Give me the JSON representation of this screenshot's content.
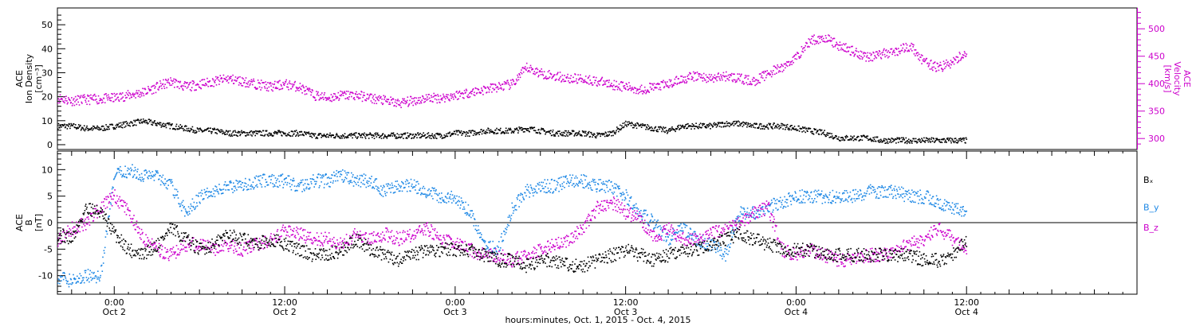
{
  "x_axis_title": "hours:minutes, Oct.  1, 2015 - Oct.  4, 2015",
  "x_ticks": [
    {
      "time": "0:00",
      "day": "Oct 2",
      "hours": 24
    },
    {
      "time": "12:00",
      "day": "Oct 2",
      "hours": 36
    },
    {
      "time": "0:00",
      "day": "Oct 3",
      "hours": 48
    },
    {
      "time": "12:00",
      "day": "Oct 3",
      "hours": 60
    },
    {
      "time": "0:00",
      "day": "Oct 4",
      "hours": 72
    },
    {
      "time": "12:00",
      "day": "Oct 4",
      "hours": 84
    }
  ],
  "colors": {
    "density": "#000000",
    "velocity": "#cc00cc",
    "bx": "#000000",
    "by": "#1e88e5",
    "bz": "#cc00cc"
  },
  "chart_data": [
    {
      "type": "scatter",
      "panel": "top",
      "ylabel_left": [
        "ACE",
        "Ion Density",
        "[cm⁻³]"
      ],
      "ylabel_right": [
        "ACE",
        "Velocity",
        "[km/s]"
      ],
      "x_range_hours": [
        20,
        96
      ],
      "ylim_left": [
        -2,
        57
      ],
      "left_ticks": [
        "0",
        "10",
        "20",
        "30",
        "40",
        "50"
      ],
      "ylim_right": [
        280,
        538
      ],
      "right_ticks": [
        "300",
        "350",
        "400",
        "450",
        "500"
      ],
      "series": [
        {
          "axis": "left",
          "x": [
            20,
            21,
            22,
            23,
            24,
            25,
            26,
            27,
            28,
            29,
            30,
            31,
            32,
            33,
            34,
            35,
            36,
            37,
            38,
            39,
            40,
            41,
            42,
            43,
            44,
            45,
            46,
            47,
            48,
            49,
            50,
            51,
            52,
            53,
            54,
            55,
            56,
            57,
            58,
            59,
            60,
            61,
            62,
            63,
            64,
            65,
            66,
            67,
            68,
            69,
            70,
            71,
            72,
            73,
            74,
            75,
            76,
            77,
            78,
            79,
            80,
            81,
            82,
            83,
            84
          ],
          "values": [
            8,
            8,
            7,
            7,
            8,
            9,
            10,
            9,
            8,
            7,
            6,
            6,
            5,
            5,
            5,
            5,
            5,
            5,
            4,
            4,
            4,
            4,
            4,
            4,
            4,
            4,
            4,
            4,
            5,
            5,
            6,
            6,
            6,
            7,
            6,
            5,
            5,
            5,
            4,
            5,
            9,
            8,
            7,
            6,
            8,
            8,
            8,
            9,
            9,
            8,
            8,
            8,
            7,
            6,
            5,
            3,
            3,
            3,
            2,
            2,
            2,
            2,
            2,
            2,
            2
          ]
        },
        {
          "axis": "right",
          "x": [
            20,
            21,
            22,
            23,
            24,
            25,
            26,
            27,
            28,
            29,
            30,
            31,
            32,
            33,
            34,
            35,
            36,
            37,
            38,
            39,
            40,
            41,
            42,
            43,
            44,
            45,
            46,
            47,
            48,
            49,
            50,
            51,
            52,
            53,
            54,
            55,
            56,
            57,
            58,
            59,
            60,
            61,
            62,
            63,
            64,
            65,
            66,
            67,
            68,
            69,
            70,
            71,
            72,
            73,
            74,
            75,
            76,
            77,
            78,
            79,
            80,
            81,
            82,
            83,
            84
          ],
          "values": [
            375,
            370,
            372,
            373,
            375,
            380,
            385,
            395,
            405,
            395,
            400,
            405,
            410,
            405,
            400,
            395,
            400,
            395,
            380,
            375,
            380,
            380,
            375,
            370,
            365,
            370,
            375,
            375,
            380,
            385,
            390,
            395,
            400,
            430,
            420,
            415,
            410,
            410,
            405,
            400,
            395,
            390,
            395,
            400,
            410,
            415,
            410,
            415,
            410,
            405,
            420,
            430,
            450,
            480,
            485,
            470,
            460,
            450,
            455,
            460,
            470,
            440,
            430,
            440,
            460
          ]
        }
      ]
    },
    {
      "type": "scatter",
      "panel": "bottom",
      "ylabel_left": [
        "ACE",
        "B",
        "[nT]"
      ],
      "x_range_hours": [
        20,
        96
      ],
      "ylim": [
        -13.5,
        13.5
      ],
      "ticks": [
        "-10",
        "-5",
        "0",
        "5",
        "10"
      ],
      "series": [
        {
          "name": "Bₓ",
          "x": [
            20,
            21,
            22,
            23,
            24,
            25,
            26,
            27,
            28,
            29,
            30,
            31,
            32,
            33,
            34,
            35,
            36,
            37,
            38,
            39,
            40,
            41,
            42,
            43,
            44,
            45,
            46,
            47,
            48,
            49,
            50,
            51,
            52,
            53,
            54,
            55,
            56,
            57,
            58,
            59,
            60,
            61,
            62,
            63,
            64,
            65,
            66,
            67,
            68,
            69,
            70,
            71,
            72,
            73,
            74,
            75,
            76,
            77,
            78,
            79,
            80,
            81,
            82,
            83,
            84
          ],
          "values": [
            -2,
            -3,
            3,
            2,
            -2,
            -5,
            -6,
            -4,
            -1,
            -3,
            -5,
            -4,
            -2,
            -3,
            -4,
            -3,
            -4,
            -5,
            -6,
            -6,
            -5,
            -3,
            -5,
            -6,
            -7,
            -6,
            -5,
            -5,
            -5,
            -5,
            -6,
            -7,
            -7,
            -8,
            -7,
            -7,
            -8,
            -8,
            -7,
            -6,
            -5,
            -6,
            -7,
            -6,
            -5,
            -5,
            -4,
            -3,
            -2,
            -3,
            -4,
            -5,
            -5,
            -5,
            -6,
            -6,
            -6,
            -6,
            -6,
            -6,
            -6,
            -7,
            -7,
            -6,
            -3
          ]
        },
        {
          "name": "B_y",
          "x": [
            20,
            21,
            22,
            23,
            24,
            25,
            26,
            27,
            28,
            29,
            30,
            31,
            32,
            33,
            34,
            35,
            36,
            37,
            38,
            39,
            40,
            41,
            42,
            43,
            44,
            45,
            46,
            47,
            48,
            49,
            50,
            51,
            52,
            53,
            54,
            55,
            56,
            57,
            58,
            59,
            60,
            61,
            62,
            63,
            64,
            65,
            66,
            67,
            68,
            69,
            70,
            71,
            72,
            73,
            74,
            75,
            76,
            77,
            78,
            79,
            80,
            81,
            82,
            83,
            84
          ],
          "values": [
            -10,
            -11,
            -10,
            -10,
            9,
            10,
            9,
            9,
            7,
            2,
            5,
            6,
            7,
            7,
            8,
            8,
            8,
            7,
            8,
            8,
            9,
            8,
            8,
            6,
            7,
            7,
            6,
            5,
            5,
            2,
            -4,
            -5,
            3,
            6,
            7,
            7,
            8,
            8,
            7,
            7,
            5,
            2,
            0,
            -3,
            -1,
            -3,
            -4,
            -6,
            2,
            2,
            3,
            4,
            5,
            5,
            5,
            5,
            5,
            6,
            6,
            6,
            5,
            5,
            4,
            3,
            2
          ]
        },
        {
          "name": "B_z",
          "x": [
            20,
            21,
            22,
            23,
            24,
            25,
            26,
            27,
            28,
            29,
            30,
            31,
            32,
            33,
            34,
            35,
            36,
            37,
            38,
            39,
            40,
            41,
            42,
            43,
            44,
            45,
            46,
            47,
            48,
            49,
            50,
            51,
            52,
            53,
            54,
            55,
            56,
            57,
            58,
            59,
            60,
            61,
            62,
            63,
            64,
            65,
            66,
            67,
            68,
            69,
            70,
            71,
            72,
            73,
            74,
            75,
            76,
            77,
            78,
            79,
            80,
            81,
            82,
            83,
            84
          ],
          "values": [
            -3,
            -1,
            0,
            3,
            5,
            2,
            -3,
            -5,
            -6,
            -4,
            -4,
            -5,
            -4,
            -5,
            -4,
            -3,
            -1,
            -2,
            -3,
            -3,
            -4,
            -2,
            -3,
            -2,
            -3,
            -2,
            -1,
            -3,
            -4,
            -5,
            -6,
            -6,
            -7,
            -6,
            -5,
            -4,
            -3,
            -1,
            3,
            4,
            2,
            1,
            -3,
            -1,
            -3,
            -3,
            -2,
            -1,
            0,
            2,
            3,
            -5,
            -6,
            -5,
            -6,
            -7,
            -7,
            -6,
            -6,
            -5,
            -4,
            -3,
            -1,
            -3,
            -5
          ]
        }
      ]
    }
  ]
}
